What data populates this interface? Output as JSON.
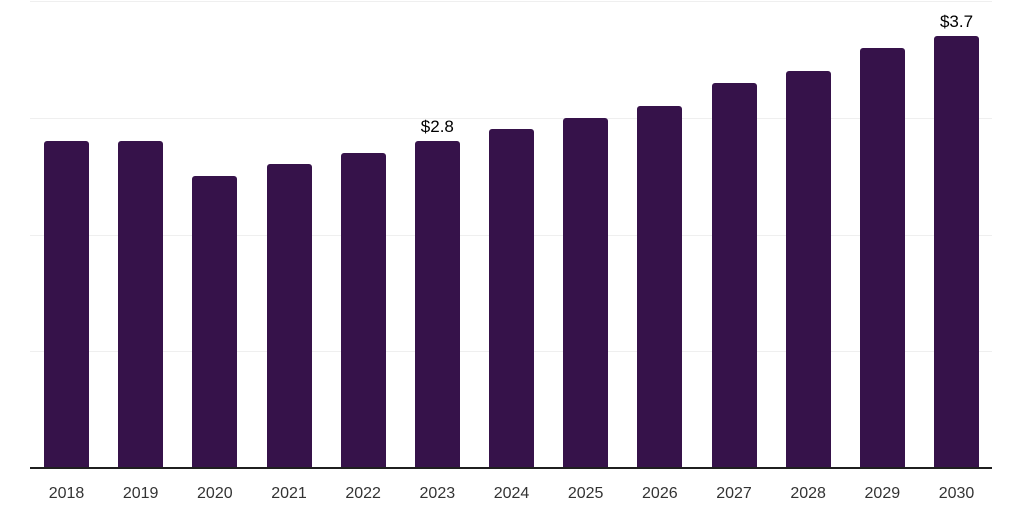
{
  "chart_data": {
    "type": "bar",
    "categories": [
      "2018",
      "2019",
      "2020",
      "2021",
      "2022",
      "2023",
      "2024",
      "2025",
      "2026",
      "2027",
      "2028",
      "2029",
      "2030"
    ],
    "values": [
      2.8,
      2.8,
      2.5,
      2.6,
      2.7,
      2.8,
      2.9,
      3.0,
      3.1,
      3.3,
      3.4,
      3.6,
      3.7
    ],
    "data_labels": [
      {
        "category": "2023",
        "text": "$2.8"
      },
      {
        "category": "2030",
        "text": "$3.7"
      }
    ],
    "title": "",
    "xlabel": "",
    "ylabel": "",
    "ylim": [
      0,
      4
    ],
    "grid": "horizontal",
    "gridline_step": 1,
    "legend": "none",
    "colors": {
      "bar": "#36124A",
      "axis_line": "#1f1f1f",
      "gridline": "#efefef",
      "tick_label": "#333333",
      "data_label": "#000000",
      "background": "#ffffff"
    }
  }
}
